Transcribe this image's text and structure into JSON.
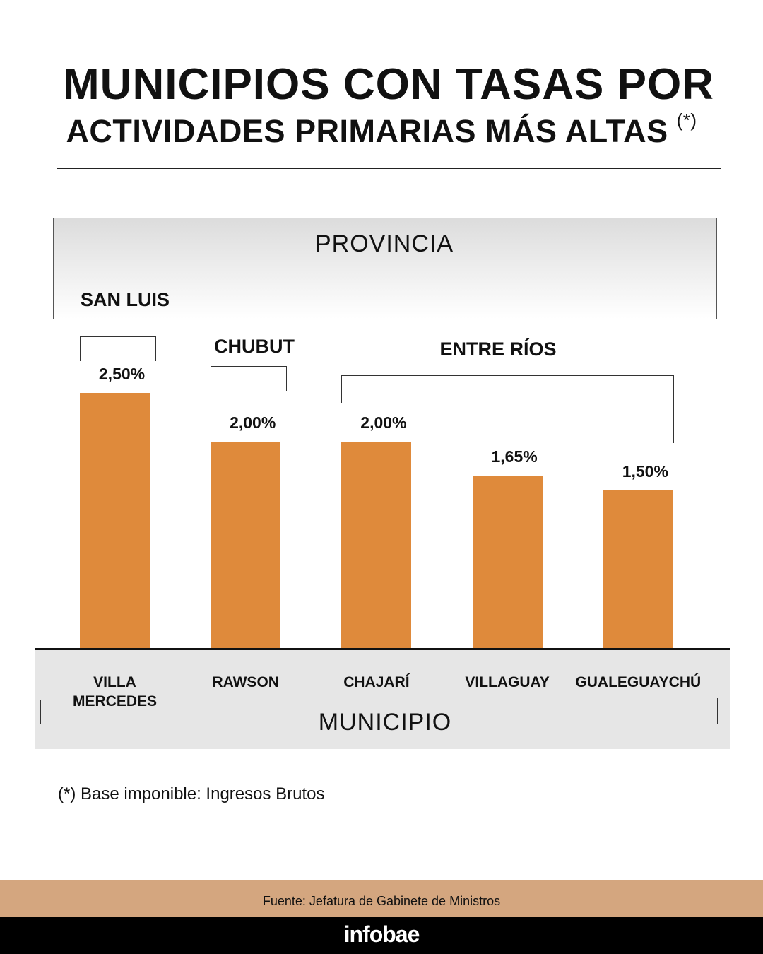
{
  "title_line1": "MUNICIPIOS CON TASAS POR",
  "title_line2": "ACTIVIDADES PRIMARIAS MÁS ALTAS",
  "title_mark": "(*)",
  "chart_data": {
    "type": "bar",
    "categories": [
      "VILLA MERCEDES",
      "RAWSON",
      "CHAJARÍ",
      "VILLAGUAY",
      "GUALEGUAYCHÚ"
    ],
    "values": [
      2.5,
      2.0,
      2.0,
      1.65,
      1.5
    ],
    "value_labels": [
      "2,50%",
      "2,00%",
      "2,00%",
      "1,65%",
      "1,50%"
    ],
    "unit": "%",
    "bar_color": "#df8a3b",
    "grid": false,
    "groups": [
      {
        "name": "SAN LUIS",
        "members": [
          "VILLA MERCEDES"
        ]
      },
      {
        "name": "CHUBUT",
        "members": [
          "RAWSON"
        ]
      },
      {
        "name": "ENTRE RÍOS",
        "members": [
          "CHAJARÍ",
          "VILLAGUAY",
          "GUALEGUAYCHÚ"
        ]
      }
    ],
    "group_axis_label": "PROVINCIA",
    "xlabel": "MUNICIPIO"
  },
  "note": "(*) Base imponible: Ingresos Brutos",
  "source": "Fuente: Jefatura de Gabinete de Ministros",
  "brand": "infobae"
}
